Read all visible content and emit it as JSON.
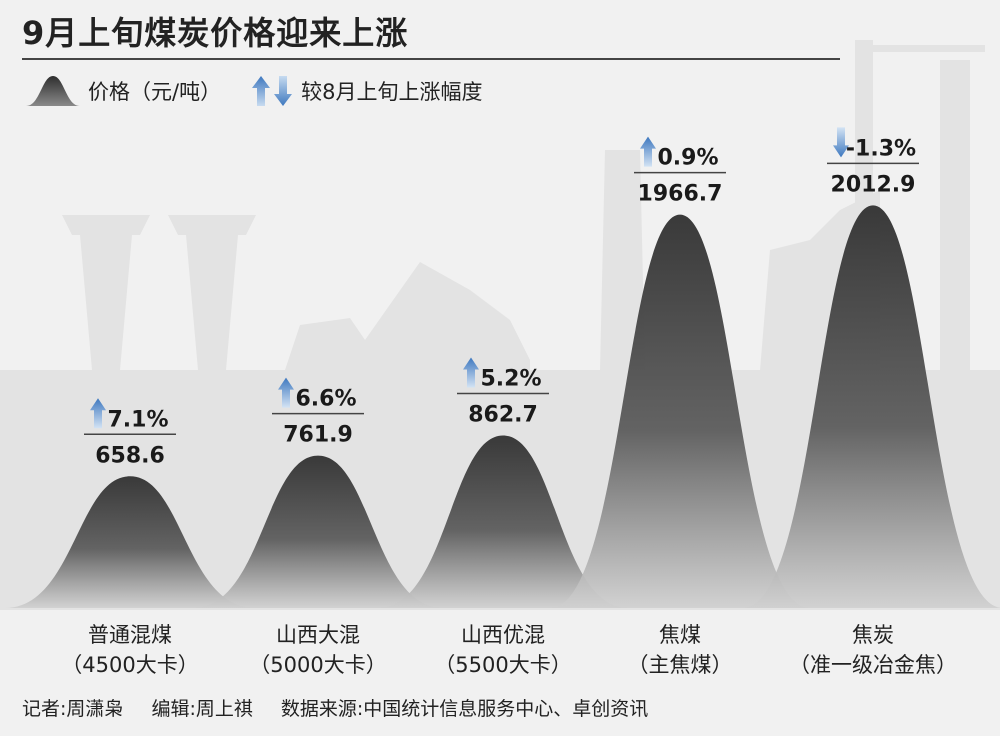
{
  "title": "9月上旬煤炭价格迎来上涨",
  "legend": {
    "price_label": "价格（元/吨）",
    "change_label": "较8月上旬上涨幅度"
  },
  "colors": {
    "background": "#f1f1f1",
    "peak_top": "#353535",
    "arrow_up": "#4f86c6",
    "arrow_down": "#7aa2d4"
  },
  "chart_data": {
    "type": "area",
    "title": "9月上旬煤炭价格迎来上涨",
    "unit": "元/吨",
    "categories": [
      [
        "普通混煤",
        "（4500大卡）"
      ],
      [
        "山西大混",
        "（5000大卡）"
      ],
      [
        "山西优混",
        "（5500大卡）"
      ],
      [
        "焦煤",
        "（主焦煤）"
      ],
      [
        "焦炭",
        "（准一级冶金焦）"
      ]
    ],
    "series": [
      {
        "name": "价格（元/吨）",
        "values": [
          658.6,
          761.9,
          862.7,
          1966.7,
          2012.9
        ]
      },
      {
        "name": "较8月上旬上涨幅度",
        "values": [
          "7.1%",
          "6.6%",
          "5.2%",
          "0.9%",
          "-1.3%"
        ],
        "direction": [
          "up",
          "up",
          "up",
          "up",
          "down"
        ]
      }
    ],
    "value_labels": [
      "658.6",
      "761.9",
      "862.7",
      "1966.7",
      "2012.9"
    ],
    "grid": false,
    "legend_position": "top-left"
  },
  "footer": {
    "reporter": "记者:周潇枭",
    "editor": "编辑:周上祺",
    "source": "数据来源:中国统计信息服务中心、卓创资讯"
  }
}
